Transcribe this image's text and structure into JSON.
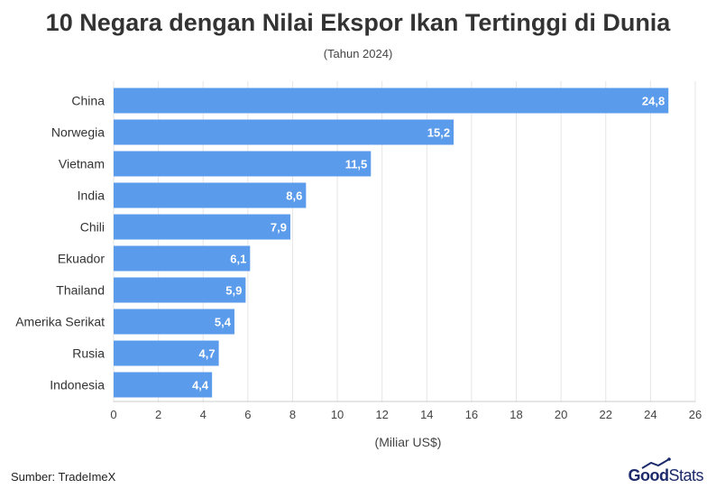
{
  "title": "10 Negara dengan Nilai Ekspor Ikan Tertinggi di Dunia",
  "subtitle": "(Tahun 2024)",
  "source": "Sumber: TradeImeX",
  "brand": {
    "part1": "Good",
    "part2": "Stats"
  },
  "colors": {
    "bar": "#5b9bec",
    "grid": "#e6e6e6",
    "text": "#333333"
  },
  "chart_data": {
    "type": "bar",
    "orientation": "horizontal",
    "categories": [
      "China",
      "Norwegia",
      "Vietnam",
      "India",
      "Chili",
      "Ekuador",
      "Thailand",
      "Amerika Serikat",
      "Rusia",
      "Indonesia"
    ],
    "values": [
      24.8,
      15.2,
      11.5,
      8.6,
      7.9,
      6.1,
      5.9,
      5.4,
      4.7,
      4.4
    ],
    "value_labels": [
      "24,8",
      "15,2",
      "11,5",
      "8,6",
      "7,9",
      "6,1",
      "5,9",
      "5,4",
      "4,7",
      "4,4"
    ],
    "xlabel": "(Miliar US$)",
    "xlim": [
      0,
      26
    ],
    "xticks": [
      0,
      2,
      4,
      6,
      8,
      10,
      12,
      14,
      16,
      18,
      20,
      22,
      24,
      26
    ],
    "grid": true
  }
}
